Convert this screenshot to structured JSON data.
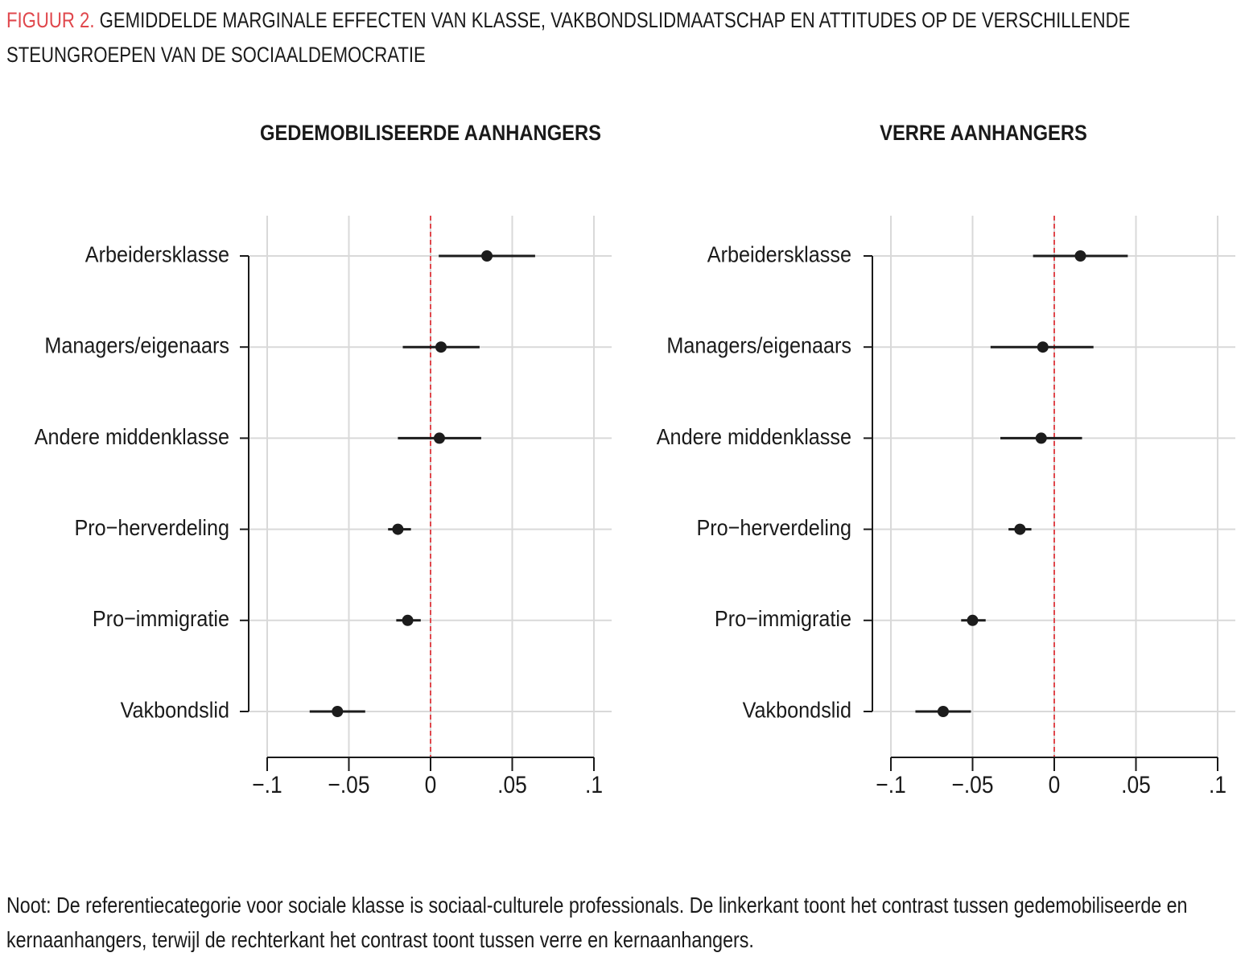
{
  "figure_label": "FIGUUR 2.",
  "figure_title": "GEMIDDELDE MARGINALE EFFECTEN VAN KLASSE, VAKBONDSLIDMAATSCHAP EN ATTITUDES OP DE VERSCHILLENDE STEUNGROEPEN VAN DE SOCIAALDEMOCRATIE",
  "note": "Noot: De referentiecategorie voor sociale klasse is sociaal-culturele professionals. De linkerkant toont het contrast tussen gedemobiliseerde en kernaanhangers, terwijl de rechterkant het contrast toont tussen verre en kernaanhangers.",
  "chart_data": [
    {
      "type": "dot",
      "title": "GEDEMOBILISEERDE AANHANGERS",
      "categories": [
        "Arbeidersklasse",
        "Managers/eigenaars",
        "Andere middenklasse",
        "Pro−herverdeling",
        "Pro−immigratie",
        "Vakbondslid"
      ],
      "values": [
        0.0345,
        0.0064,
        0.0054,
        -0.02,
        -0.014,
        -0.057
      ],
      "ci_low": [
        0.005,
        -0.017,
        -0.02,
        -0.026,
        -0.021,
        -0.074
      ],
      "ci_high": [
        0.064,
        0.03,
        0.031,
        -0.012,
        -0.006,
        -0.04
      ],
      "color": "#1c1c1c",
      "reference_line": 0,
      "reference_color": "#e0474c",
      "xlim": [
        -0.1,
        0.1
      ],
      "xticks": [
        {
          "value": -0.1,
          "label": "−.1"
        },
        {
          "value": -0.05,
          "label": "−.05"
        },
        0,
        {
          "value": 0.05,
          "label": ".05"
        },
        {
          "value": 0.1,
          "label": ".1"
        }
      ],
      "grid": true
    },
    {
      "type": "dot",
      "title": "VERRE AANHANGERS",
      "categories": [
        "Arbeidersklasse",
        "Managers/eigenaars",
        "Andere middenklasse",
        "Pro−herverdeling",
        "Pro−immigratie",
        "Vakbondslid"
      ],
      "values": [
        0.016,
        -0.007,
        -0.008,
        -0.021,
        -0.05,
        -0.068
      ],
      "ci_low": [
        -0.013,
        -0.039,
        -0.033,
        -0.028,
        -0.057,
        -0.085
      ],
      "ci_high": [
        0.045,
        0.024,
        0.017,
        -0.014,
        -0.042,
        -0.051
      ],
      "color": "#1c1c1c",
      "reference_line": 0,
      "reference_color": "#e0474c",
      "xlim": [
        -0.1,
        0.1
      ],
      "xticks": [
        {
          "value": -0.1,
          "label": "−.1"
        },
        {
          "value": -0.05,
          "label": "−.05"
        },
        0,
        {
          "value": 0.05,
          "label": ".05"
        },
        {
          "value": 0.1,
          "label": ".1"
        }
      ],
      "grid": true
    }
  ]
}
